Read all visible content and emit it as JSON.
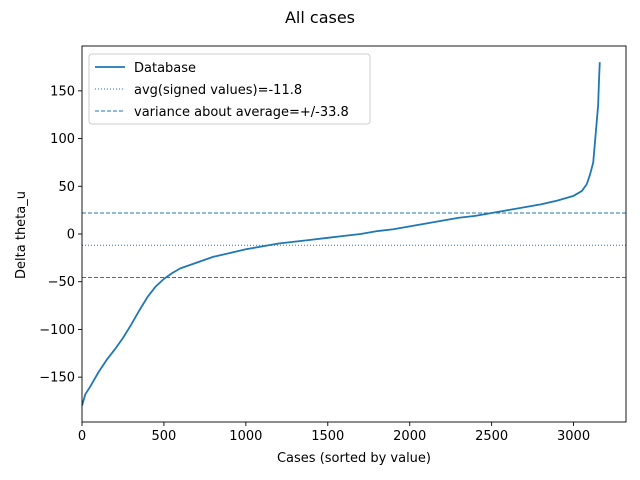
{
  "chart_data": {
    "type": "line",
    "title": "All cases",
    "xlabel": "Cases (sorted by value)",
    "ylabel": "Delta theta_u",
    "xlim": [
      0,
      3320
    ],
    "ylim": [
      -197,
      197
    ],
    "xticks": [
      0,
      500,
      1000,
      1500,
      2000,
      2500,
      3000
    ],
    "yticks": [
      -150,
      -100,
      -50,
      0,
      50,
      100,
      150
    ],
    "grid": false,
    "legend_position": "top-left",
    "series": [
      {
        "name": "Database",
        "style": "solid",
        "color": "#1f77b4",
        "points": [
          [
            0,
            -180
          ],
          [
            20,
            -168
          ],
          [
            50,
            -160
          ],
          [
            100,
            -145
          ],
          [
            150,
            -132
          ],
          [
            200,
            -121
          ],
          [
            250,
            -109
          ],
          [
            300,
            -95
          ],
          [
            350,
            -80
          ],
          [
            400,
            -66
          ],
          [
            450,
            -55
          ],
          [
            500,
            -47
          ],
          [
            550,
            -41
          ],
          [
            600,
            -36
          ],
          [
            700,
            -30
          ],
          [
            800,
            -24
          ],
          [
            900,
            -20
          ],
          [
            1000,
            -16
          ],
          [
            1100,
            -13
          ],
          [
            1200,
            -10
          ],
          [
            1300,
            -8
          ],
          [
            1400,
            -6
          ],
          [
            1500,
            -4
          ],
          [
            1600,
            -2
          ],
          [
            1700,
            0
          ],
          [
            1800,
            3
          ],
          [
            1900,
            5
          ],
          [
            2000,
            8
          ],
          [
            2100,
            11
          ],
          [
            2200,
            14
          ],
          [
            2300,
            17
          ],
          [
            2400,
            19
          ],
          [
            2500,
            22
          ],
          [
            2600,
            25
          ],
          [
            2700,
            28
          ],
          [
            2800,
            31
          ],
          [
            2900,
            35
          ],
          [
            3000,
            40
          ],
          [
            3050,
            45
          ],
          [
            3080,
            52
          ],
          [
            3100,
            62
          ],
          [
            3120,
            75
          ],
          [
            3130,
            95
          ],
          [
            3140,
            115
          ],
          [
            3150,
            135
          ],
          [
            3155,
            160
          ],
          [
            3160,
            180
          ]
        ]
      },
      {
        "name": "avg(signed values)=-11.8",
        "style": "dotted",
        "color": "#1f77b4",
        "y": -11.8
      },
      {
        "name": "variance about average=+/-33.8",
        "style": "dashed",
        "color": "#1f77b4",
        "y": [
          22.0,
          -45.6
        ]
      }
    ]
  },
  "colors": {
    "line": "#1f77b4",
    "axis": "#000000",
    "legend_border": "#cccccc"
  }
}
